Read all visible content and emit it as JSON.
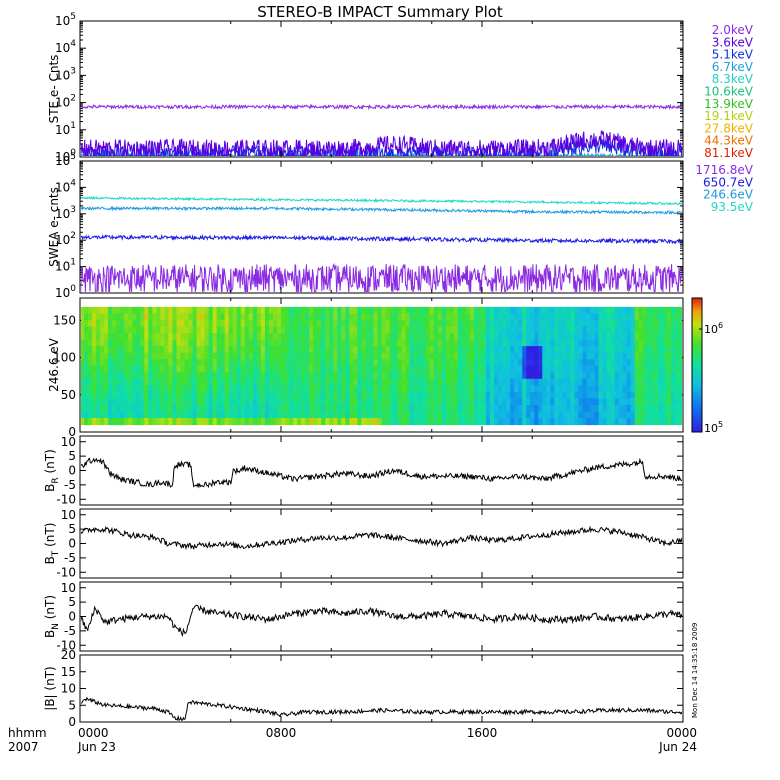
{
  "title": "STEREO-B IMPACT Summary Plot",
  "timestamp_vertical": "Mon Dec 14 14:35:18 2009",
  "x_axis": {
    "row_label_1": "hhmm",
    "row_label_2": "2007",
    "ticks": [
      {
        "t": 0,
        "time": "0000",
        "date": "Jun 23"
      },
      {
        "t": 8,
        "time": "0800",
        "date": ""
      },
      {
        "t": 16,
        "time": "1600",
        "date": ""
      },
      {
        "t": 24,
        "time": "0000",
        "date": "Jun 24"
      }
    ],
    "range_hours": [
      0,
      24
    ]
  },
  "colors": {
    "axis": "#000000",
    "line": "#000000"
  },
  "chart_data": [
    {
      "id": "ste",
      "type": "line",
      "ylabel": "STE e- Cnts",
      "yscale": "log",
      "ylim_exp": [
        0,
        5
      ],
      "tick_exps": [
        0,
        1,
        2,
        3,
        4,
        5
      ],
      "legend_position": "right",
      "series": [
        {
          "name": "2.0keV",
          "color": "#8a2be2",
          "level": 70,
          "noise": 0.06,
          "bumps": []
        },
        {
          "name": "3.6keV",
          "color": "#5a00e0",
          "level": 2.0,
          "noise": 0.35,
          "bumps": [
            {
              "t": 20.5,
              "w": 1.2,
              "f": 2.2
            },
            {
              "t": 12.5,
              "w": 1.0,
              "f": 1.4
            }
          ]
        },
        {
          "name": "5.1keV",
          "color": "#1030e0",
          "level": 1.3,
          "noise": 0.3,
          "bumps": [
            {
              "t": 20.5,
              "w": 1.3,
              "f": 2.0
            }
          ]
        },
        {
          "name": "6.7keV",
          "color": "#1ca0e0",
          "level": 1.05,
          "noise": 0.1,
          "bumps": []
        },
        {
          "name": "8.3keV",
          "color": "#20d0c0",
          "level": 1.0,
          "noise": 0.05,
          "bumps": []
        },
        {
          "name": "10.6keV",
          "color": "#20c080",
          "level": 1.0,
          "noise": 0.05,
          "bumps": []
        },
        {
          "name": "13.9keV",
          "color": "#30c020",
          "level": 1.0,
          "noise": 0.05,
          "bumps": []
        },
        {
          "name": "19.1keV",
          "color": "#b0d010",
          "level": 1.0,
          "noise": 0.05,
          "bumps": []
        },
        {
          "name": "27.8keV",
          "color": "#f0b000",
          "level": 1.0,
          "noise": 0.05,
          "bumps": []
        },
        {
          "name": "44.3keV",
          "color": "#f07000",
          "level": 1.0,
          "noise": 0.05,
          "bumps": []
        },
        {
          "name": "81.1keV",
          "color": "#e02000",
          "level": 1.0,
          "noise": 0.05,
          "bumps": []
        }
      ]
    },
    {
      "id": "swea",
      "type": "line",
      "ylabel": "SWEA e- cnts",
      "yscale": "log",
      "ylim_exp": [
        0,
        5
      ],
      "tick_exps": [
        0,
        1,
        2,
        3,
        4,
        5
      ],
      "legend_position": "right",
      "series": [
        {
          "name": "1716.8eV",
          "color": "#8a2be2",
          "level": 3.5,
          "noise": 0.55,
          "trend": [
            [
              0,
              1.0
            ],
            [
              24,
              1.0
            ]
          ]
        },
        {
          "name": "650.7eV",
          "color": "#1a1ae0",
          "level": 130,
          "noise": 0.07,
          "trend": [
            [
              0,
              1.0
            ],
            [
              8,
              0.95
            ],
            [
              18,
              0.75
            ],
            [
              24,
              0.7
            ]
          ]
        },
        {
          "name": "246.6eV",
          "color": "#1c9ae0",
          "level": 1600,
          "noise": 0.05,
          "trend": [
            [
              0,
              1.0
            ],
            [
              8,
              1.0
            ],
            [
              18,
              0.75
            ],
            [
              24,
              0.7
            ]
          ]
        },
        {
          "name": "93.5eV",
          "color": "#20d8c8",
          "level": 4000,
          "noise": 0.04,
          "trend": [
            [
              0,
              1.0
            ],
            [
              8,
              0.85
            ],
            [
              18,
              0.7
            ],
            [
              24,
              0.6
            ]
          ]
        }
      ]
    },
    {
      "id": "pad",
      "type": "heatmap",
      "ylabel": "246.6 eV",
      "ylim": [
        0,
        180
      ],
      "yticks": [
        0,
        50,
        100,
        150
      ],
      "colorbar": {
        "scale": "log",
        "min_label": "10",
        "min_exp": "5",
        "max_label": "10",
        "max_exp": "6"
      }
    },
    {
      "id": "br",
      "type": "line",
      "ylabel_main": "B",
      "ylabel_sub": "R",
      "ylabel_unit": " (nT)",
      "ylim": [
        -12,
        12
      ],
      "yticks": [
        -10,
        -5,
        0,
        5,
        10
      ],
      "points": [
        [
          0,
          1
        ],
        [
          0.3,
          3
        ],
        [
          0.6,
          4
        ],
        [
          0.9,
          3
        ],
        [
          1.2,
          -1
        ],
        [
          1.6,
          -3
        ],
        [
          2.2,
          -4
        ],
        [
          2.8,
          -5
        ],
        [
          3.2,
          -4
        ],
        [
          3.7,
          -5
        ],
        [
          3.75,
          2
        ],
        [
          4.4,
          2
        ],
        [
          4.5,
          -5
        ],
        [
          5.2,
          -5
        ],
        [
          5.3,
          -4
        ],
        [
          6.0,
          -4
        ],
        [
          6.1,
          0
        ],
        [
          6.4,
          0
        ],
        [
          6.5,
          1
        ],
        [
          7.5,
          -1
        ],
        [
          8.5,
          -3
        ],
        [
          9.5,
          -2
        ],
        [
          10.5,
          -1
        ],
        [
          11.5,
          -2
        ],
        [
          12.5,
          0
        ],
        [
          13.5,
          -2
        ],
        [
          14.5,
          -2
        ],
        [
          15.5,
          -2
        ],
        [
          16.5,
          -3
        ],
        [
          17.5,
          -2
        ],
        [
          18.5,
          -3
        ],
        [
          19.5,
          -1
        ],
        [
          20.5,
          1
        ],
        [
          21.5,
          2
        ],
        [
          22.4,
          3
        ],
        [
          22.5,
          -2
        ],
        [
          23.3,
          -2
        ],
        [
          24,
          -3
        ]
      ],
      "noise": 1.0
    },
    {
      "id": "bt",
      "type": "line",
      "ylabel_main": "B",
      "ylabel_sub": "T",
      "ylabel_unit": " (nT)",
      "ylim": [
        -12,
        12
      ],
      "yticks": [
        -10,
        -5,
        0,
        5,
        10
      ],
      "points": [
        [
          0,
          4
        ],
        [
          0.5,
          5
        ],
        [
          1.0,
          5
        ],
        [
          1.5,
          4
        ],
        [
          2.0,
          3
        ],
        [
          3.0,
          2
        ],
        [
          3.5,
          0
        ],
        [
          4.5,
          -1
        ],
        [
          5.5,
          0
        ],
        [
          6.5,
          -1
        ],
        [
          7.5,
          0
        ],
        [
          8.5,
          1
        ],
        [
          9.5,
          2
        ],
        [
          10.5,
          2
        ],
        [
          11.5,
          3
        ],
        [
          12.5,
          2
        ],
        [
          13.5,
          1
        ],
        [
          14.5,
          0
        ],
        [
          15.5,
          2
        ],
        [
          16.5,
          1
        ],
        [
          17.5,
          2
        ],
        [
          18.5,
          3
        ],
        [
          19.5,
          4
        ],
        [
          20.5,
          5
        ],
        [
          21.5,
          4
        ],
        [
          22.5,
          2
        ],
        [
          23.3,
          0
        ],
        [
          24,
          1
        ]
      ],
      "noise": 1.0
    },
    {
      "id": "bn",
      "type": "line",
      "ylabel_main": "B",
      "ylabel_sub": "N",
      "ylabel_unit": " (nT)",
      "ylim": [
        -12,
        12
      ],
      "yticks": [
        -10,
        -5,
        0,
        5,
        10
      ],
      "points": [
        [
          0,
          0
        ],
        [
          0.3,
          -5
        ],
        [
          0.6,
          3
        ],
        [
          1.0,
          -2
        ],
        [
          1.5,
          -1
        ],
        [
          2.5,
          0
        ],
        [
          3.5,
          0
        ],
        [
          3.8,
          -4
        ],
        [
          4.2,
          -6
        ],
        [
          4.5,
          3
        ],
        [
          5.5,
          1
        ],
        [
          6.5,
          0
        ],
        [
          7.5,
          -1
        ],
        [
          8.5,
          1
        ],
        [
          9.5,
          2
        ],
        [
          10.5,
          1
        ],
        [
          11.5,
          2
        ],
        [
          12.5,
          0
        ],
        [
          13.5,
          0
        ],
        [
          14.5,
          1
        ],
        [
          15.5,
          0
        ],
        [
          16.5,
          -1
        ],
        [
          17.5,
          0
        ],
        [
          18.5,
          -1
        ],
        [
          19.5,
          -1
        ],
        [
          20.5,
          0
        ],
        [
          21.5,
          -1
        ],
        [
          22.5,
          0
        ],
        [
          23.5,
          1
        ],
        [
          24,
          0
        ]
      ],
      "noise": 1.2
    },
    {
      "id": "bmag",
      "type": "line",
      "ylabel_main": "|B| (nT)",
      "ylim": [
        0,
        20
      ],
      "yticks": [
        0,
        5,
        10,
        15,
        20
      ],
      "points": [
        [
          0,
          5
        ],
        [
          0.2,
          7
        ],
        [
          0.6,
          6
        ],
        [
          1.0,
          5
        ],
        [
          2.0,
          4.5
        ],
        [
          3.0,
          4
        ],
        [
          3.5,
          3
        ],
        [
          3.8,
          1
        ],
        [
          4.2,
          1
        ],
        [
          4.3,
          6
        ],
        [
          5.5,
          5
        ],
        [
          6.5,
          4
        ],
        [
          7.5,
          3
        ],
        [
          8.0,
          2
        ],
        [
          9.0,
          3
        ],
        [
          10.5,
          3
        ],
        [
          12,
          3.5
        ],
        [
          13.5,
          3
        ],
        [
          15,
          3
        ],
        [
          16.5,
          3
        ],
        [
          18,
          3
        ],
        [
          19.5,
          3
        ],
        [
          21,
          3.5
        ],
        [
          22.5,
          3.5
        ],
        [
          23.5,
          3
        ],
        [
          24,
          3
        ]
      ],
      "noise": 0.6
    }
  ]
}
